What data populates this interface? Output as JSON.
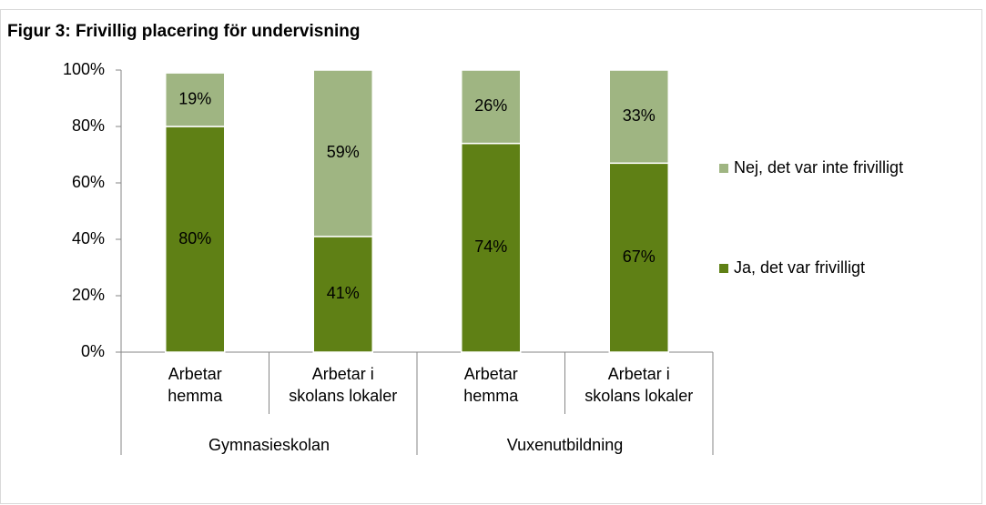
{
  "chart_data": {
    "type": "stacked_bar",
    "title": "Figur 3: Frivillig placering för undervisning",
    "categories": [
      "Arbetar\nhemma",
      "Arbetar i\nskolans lokaler",
      "Arbetar\nhemma",
      "Arbetar i\nskolans lokaler"
    ],
    "groups": [
      "Gymnasieskolan",
      "Vuxenutbildning"
    ],
    "series": [
      {
        "name": "Ja, det var frivilligt",
        "color": "#5f8015",
        "values": [
          80,
          41,
          74,
          67
        ],
        "value_labels": [
          "80%",
          "41%",
          "74%",
          "67%"
        ]
      },
      {
        "name": "Nej, det var inte frivilligt",
        "color": "#9fb582",
        "values": [
          19,
          59,
          26,
          33
        ],
        "value_labels": [
          "19%",
          "59%",
          "26%",
          "33%"
        ]
      }
    ],
    "ylim": [
      0,
      100
    ],
    "yticks": [
      {
        "value": 0,
        "label": "0%"
      },
      {
        "value": 20,
        "label": "20%"
      },
      {
        "value": 40,
        "label": "40%"
      },
      {
        "value": 60,
        "label": "60%"
      },
      {
        "value": 80,
        "label": "80%"
      },
      {
        "value": 100,
        "label": "100%"
      }
    ],
    "legend": "right"
  }
}
